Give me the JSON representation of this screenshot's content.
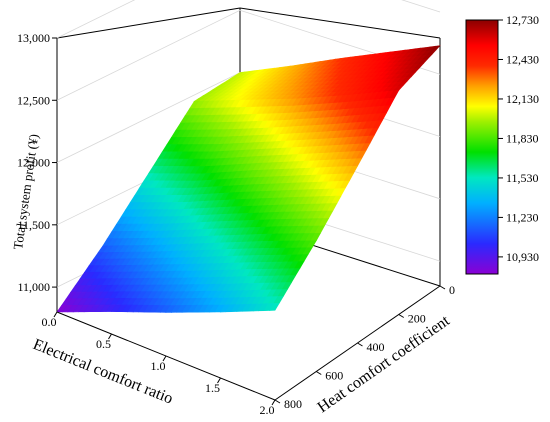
{
  "chart_data": {
    "type": "surface3d",
    "x_axis": {
      "label": "Heat comfort coefficient",
      "ticks": [
        "0",
        "200",
        "400",
        "600",
        "800"
      ],
      "range": [
        0,
        800
      ]
    },
    "y_axis": {
      "label": "Electrical comfort ratio",
      "ticks": [
        "0.0",
        "0.5",
        "1.0",
        "1.5",
        "2.0"
      ],
      "range": [
        0,
        2
      ]
    },
    "z_axis": {
      "label": "Total system profit (¥)",
      "ticks": [
        "11,000",
        "11,500",
        "12,000",
        "12,500",
        "13,000"
      ],
      "range": [
        10800,
        13000
      ]
    },
    "surface": {
      "heat": [
        0,
        200,
        400,
        600,
        800
      ],
      "ratio": [
        0,
        0.5,
        1,
        1.5,
        2
      ],
      "z": [
        [
          12000,
          11950,
          11550,
          11150,
          10800
        ],
        [
          12180,
          12100,
          11700,
          11320,
          10980
        ],
        [
          12370,
          12250,
          11880,
          11500,
          11150
        ],
        [
          12550,
          12420,
          12050,
          11680,
          11330
        ],
        [
          12730,
          12600,
          12220,
          11850,
          11520
        ]
      ]
    },
    "colorbar": {
      "ticks": [
        "12,730",
        "12,430",
        "12,130",
        "11,830",
        "11,530",
        "11,230",
        "10,930"
      ],
      "range": [
        10800,
        12730
      ]
    },
    "colors": {
      "low": "#8a00d4",
      "mid": "#00e000",
      "high": "#8b0000"
    }
  }
}
